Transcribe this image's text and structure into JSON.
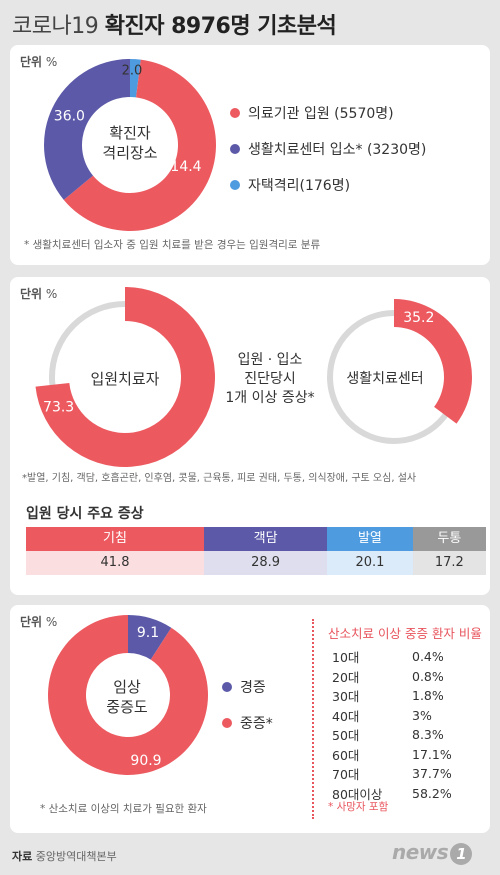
{
  "title_plain": "코로나19",
  "title_bold": "확진자 8976명 기초분석",
  "unit_label": "단위",
  "unit_sign": "%",
  "colors": {
    "red": "#ec5a60",
    "purple": "#5c5aa8",
    "blue": "#4f9be0",
    "gray": "#999999",
    "lightgray": "#d9d9d9"
  },
  "chart_data": [
    {
      "type": "pie",
      "center_label": "확진자\n격리장소",
      "slices": [
        {
          "label": "의료기관 입원 (5570명)",
          "value": 62.0,
          "value_label": "",
          "color": "#ec5a60"
        },
        {
          "label": "생활치료센터 입소* (3230명)",
          "value": 36.0,
          "value_label": "36.0",
          "color": "#5c5aa8"
        },
        {
          "label": "자택격리(176명)",
          "value": 2.0,
          "value_label": "2.0",
          "color": "#4f9be0"
        }
      ],
      "extra_label": "14.4",
      "legend_placement": "right",
      "note": "* 생활치료센터 입소자 중 입원 치료를 받은 경우는 입원격리로 분류"
    },
    {
      "type": "pie",
      "center_label": "입원치료자",
      "value": 73.3,
      "value_label": "73.3"
    },
    {
      "type": "pie",
      "center_label": "생활치료센터",
      "value": 35.2,
      "value_label": "35.2"
    },
    {
      "type": "bar",
      "title": "입원 당시 주요 증상",
      "categories": [
        "기침",
        "객담",
        "발열",
        "두통"
      ],
      "values": [
        41.8,
        28.9,
        20.1,
        17.2
      ],
      "value_labels": [
        "41.8",
        "28.9",
        "20.1",
        "17.2"
      ],
      "colors": [
        "#ec5a60",
        "#5c5aa8",
        "#4f9be0",
        "#999999"
      ]
    },
    {
      "type": "pie",
      "center_label": "임상\n중증도",
      "slices": [
        {
          "label": "경증",
          "value": 9.1,
          "value_label": "9.1",
          "color": "#5c5aa8"
        },
        {
          "label": "중증*",
          "value": 90.9,
          "value_label": "90.9",
          "color": "#ec5a60"
        }
      ],
      "legend_placement": "right",
      "note": "* 산소치료 이상의 치료가 필요한  환자"
    },
    {
      "type": "table",
      "title": "산소치료 이상 중증 환자 비율",
      "rows": [
        {
          "age": "10대",
          "value": "0.4%"
        },
        {
          "age": "20대",
          "value": "0.8%"
        },
        {
          "age": "30대",
          "value": "1.8%"
        },
        {
          "age": "40대",
          "value": "3%"
        },
        {
          "age": "50대",
          "value": "8.3%"
        },
        {
          "age": "60대",
          "value": "17.1%"
        },
        {
          "age": "70대",
          "value": "37.7%"
        },
        {
          "age": "80대이상",
          "value": "58.2%"
        }
      ],
      "note": "* 사망자 포함"
    }
  ],
  "symptom_mid_label": "입원 · 입소\n진단당시\n1개 이상 증상*",
  "symptom_note": "*발열, 기침, 객담, 호흡곤란, 인후염, 콧물, 근육통, 피로 권태, 두통, 의식장애, 구토 오심, 설사",
  "source_label": "자료",
  "source_value": "중앙방역대책본부",
  "logo_text": "news",
  "logo_num": "1"
}
